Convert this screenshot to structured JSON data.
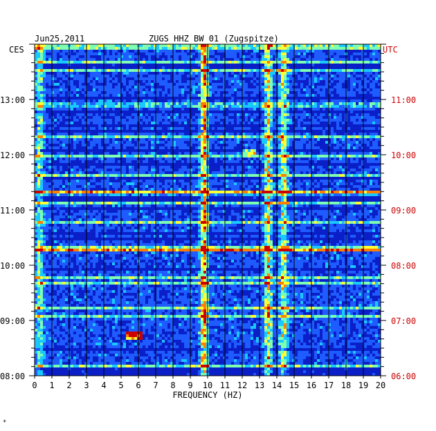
{
  "header": {
    "date": "Jun25,2011",
    "station": "ZUGS HHZ BW 01 (Zugspitze)",
    "left_tz": "CES",
    "right_tz": "UTC"
  },
  "footer_mark": "*",
  "colors": {
    "background": "#ffffff",
    "plot_bg": "#0a1fc8",
    "grid": "#000000",
    "left_text": "#000000",
    "right_text": "#cc0000"
  },
  "chart_data": {
    "type": "heatmap",
    "title": "ZUGS HHZ BW 01 (Zugspitze)",
    "xlabel": "FREQUENCY (HZ)",
    "ylabel": "",
    "xlim": [
      0,
      20
    ],
    "x_ticks": [
      "0",
      "1",
      "2",
      "3",
      "4",
      "5",
      "6",
      "7",
      "8",
      "9",
      "10",
      "11",
      "12",
      "13",
      "14",
      "15",
      "16",
      "17",
      "18",
      "19",
      "20"
    ],
    "y_left_ticks": [
      "08:00",
      "09:00",
      "10:00",
      "11:00",
      "12:00",
      "13:00"
    ],
    "y_right_ticks": [
      "06:00",
      "07:00",
      "08:00",
      "09:00",
      "10:00",
      "11:00"
    ],
    "time_range_hours_ces": [
      8.0,
      13.0
    ],
    "colormap": [
      "#0a1fc8",
      "#1e5cff",
      "#19c8ff",
      "#7fffb0",
      "#ffff33",
      "#ff7f00",
      "#cc0000"
    ],
    "persistent_bands_hz": [
      {
        "f": 9.8,
        "strength": 0.75
      },
      {
        "f": 13.5,
        "strength": 0.6
      },
      {
        "f": 14.4,
        "strength": 0.55
      },
      {
        "f": 0.3,
        "strength": 0.4
      }
    ],
    "events": [
      {
        "f_start": 5.3,
        "f_end": 6.3,
        "time_ces": "08:45",
        "strength": 1.0
      },
      {
        "f_start": 12.0,
        "f_end": 12.8,
        "time_ces": "12:05",
        "strength": 0.7
      },
      {
        "f_start": 0.0,
        "f_end": 20.0,
        "time_ces": "12:55",
        "strength": 0.45
      },
      {
        "f_start": 0.0,
        "f_end": 20.0,
        "time_ces": "10:20",
        "strength": 0.45
      },
      {
        "f_start": 0.0,
        "f_end": 20.0,
        "time_ces": "11:20",
        "strength": 0.35
      }
    ]
  }
}
